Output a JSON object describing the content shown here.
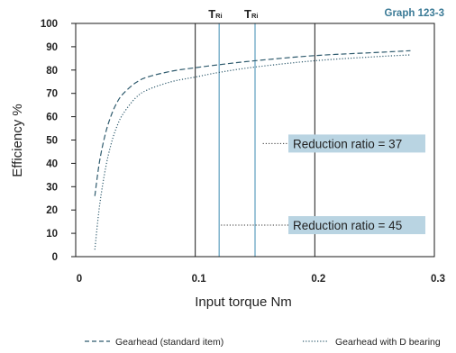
{
  "chart_data": {
    "type": "line",
    "graph_id": "Graph 123-3",
    "xlabel": "Input torque    Nm",
    "ylabel": "Efficiency %",
    "xlim": [
      0,
      0.3
    ],
    "ylim": [
      0,
      100
    ],
    "x_ticks": [
      "0",
      "0.1",
      "0.2",
      "0.3"
    ],
    "y_ticks": [
      "0",
      "10",
      "20",
      "30",
      "40",
      "50",
      "60",
      "70",
      "80",
      "90",
      "100"
    ],
    "grid": "vertical",
    "series": [
      {
        "name": "Gearhead (standard item)",
        "style": "dashed",
        "color": "#2f5b6e",
        "x": [
          0.016,
          0.02,
          0.025,
          0.03,
          0.035,
          0.04,
          0.05,
          0.06,
          0.08,
          0.1,
          0.12,
          0.15,
          0.2,
          0.25,
          0.28
        ],
        "y": [
          26,
          41,
          53,
          61,
          66.5,
          70,
          74.5,
          77,
          79.5,
          81,
          82.3,
          84,
          86.2,
          87.5,
          88.3
        ]
      },
      {
        "name": "Gearhead with D bearing",
        "style": "dotted",
        "color": "#2f5b6e",
        "x": [
          0.016,
          0.02,
          0.025,
          0.03,
          0.035,
          0.04,
          0.05,
          0.06,
          0.08,
          0.1,
          0.12,
          0.15,
          0.2,
          0.25,
          0.28
        ],
        "y": [
          3,
          22,
          38,
          49,
          56.5,
          61.5,
          68,
          71.5,
          75,
          77,
          79,
          81.3,
          84,
          85.7,
          86.5
        ]
      }
    ],
    "reference_lines": [
      {
        "label": "T",
        "subscript": "Ri",
        "x": 0.12,
        "color": "#6aa6c4"
      },
      {
        "label": "T",
        "subscript": "Ri",
        "x": 0.15,
        "color": "#6aa6c4"
      }
    ],
    "annotations": [
      {
        "text": "Reduction ratio = 37",
        "y": 48.5,
        "x_from": 0.155
      },
      {
        "text": "Reduction ratio = 45",
        "y": 13.5,
        "x_from": 0.12
      }
    ],
    "colors": {
      "graph_id": "#3a7a96",
      "label_box": "#b9d4e2",
      "axis": "#1a1a1a"
    }
  }
}
